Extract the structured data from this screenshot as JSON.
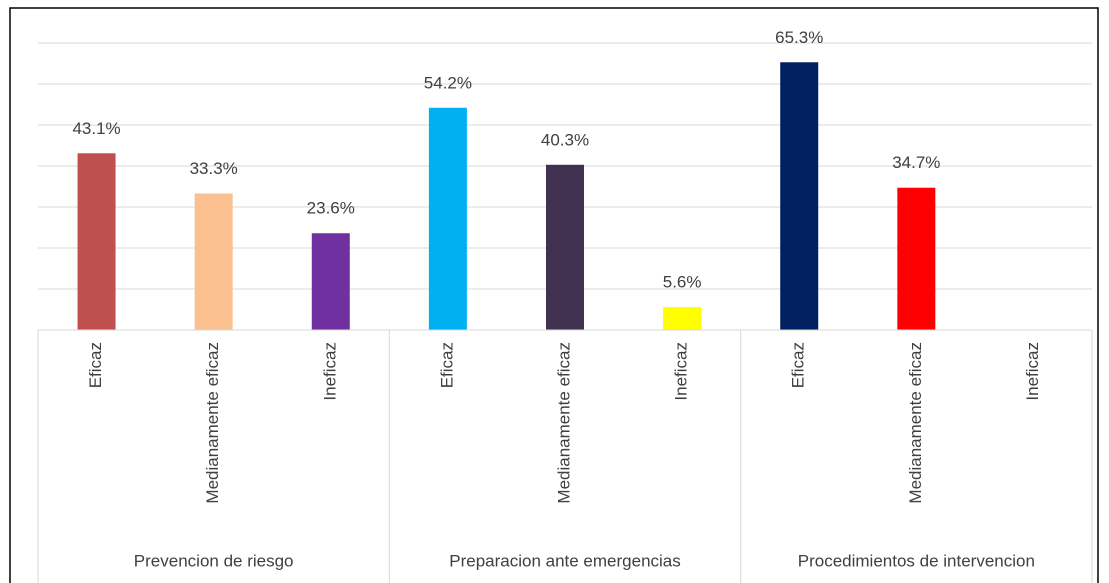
{
  "chart_data": {
    "type": "bar",
    "groups": [
      "Prevencion de riesgo",
      "Preparacion ante emergencias",
      "Procedimientos de intervencion"
    ],
    "categories": [
      "Eficaz",
      "Medianamente eficaz",
      "Ineficaz",
      "Eficaz",
      "Medianamente eficaz",
      "Ineficaz",
      "Eficaz",
      "Medianamente eficaz",
      "Ineficaz"
    ],
    "values": [
      43.1,
      33.3,
      23.6,
      54.2,
      40.3,
      5.6,
      65.3,
      34.7,
      null
    ],
    "value_labels": [
      "43.1%",
      "33.3%",
      "23.6%",
      "54.2%",
      "40.3%",
      "5.6%",
      "65.3%",
      "34.7%",
      null
    ],
    "colors": [
      "#c0504d",
      "#fac090",
      "#7030a0",
      "#00b0f0",
      "#403151",
      "#ffff00",
      "#002060",
      "#ff0000",
      null
    ],
    "ylim": [
      0,
      70
    ],
    "yticks": [
      0,
      10,
      20,
      30,
      40,
      50,
      60,
      70
    ],
    "grid": true
  }
}
